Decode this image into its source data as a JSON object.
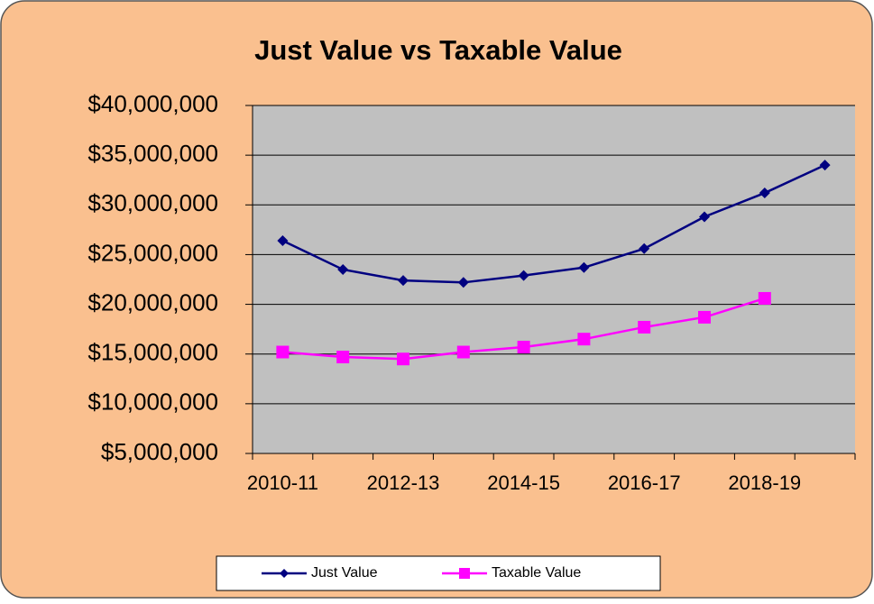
{
  "chart_data": {
    "type": "line",
    "title": "Just Value vs Taxable Value",
    "categories": [
      "2010-11",
      null,
      "2012-13",
      null,
      "2014-15",
      null,
      "2016-17",
      null,
      "2018-19",
      null
    ],
    "series": [
      {
        "name": "Just Value",
        "color": "#000080",
        "marker": "diamond",
        "values": [
          26400000,
          23500000,
          22400000,
          22200000,
          22900000,
          23700000,
          25600000,
          28800000,
          31200000,
          34000000
        ]
      },
      {
        "name": "Taxable Value",
        "color": "#ff00ff",
        "marker": "square",
        "values": [
          15200000,
          14700000,
          14500000,
          15200000,
          15700000,
          16500000,
          17700000,
          18700000,
          20600000,
          null
        ]
      }
    ],
    "ylim": [
      5000000,
      40000000
    ],
    "yticks": [
      {
        "value": 5000000,
        "label": "$5,000,000"
      },
      {
        "value": 10000000,
        "label": "$10,000,000"
      },
      {
        "value": 15000000,
        "label": "$15,000,000"
      },
      {
        "value": 20000000,
        "label": "$20,000,000"
      },
      {
        "value": 25000000,
        "label": "$25,000,000"
      },
      {
        "value": 30000000,
        "label": "$30,000,000"
      },
      {
        "value": 35000000,
        "label": "$35,000,000"
      },
      {
        "value": 40000000,
        "label": "$40,000,000"
      }
    ],
    "grid": true,
    "legend": "bottom"
  }
}
